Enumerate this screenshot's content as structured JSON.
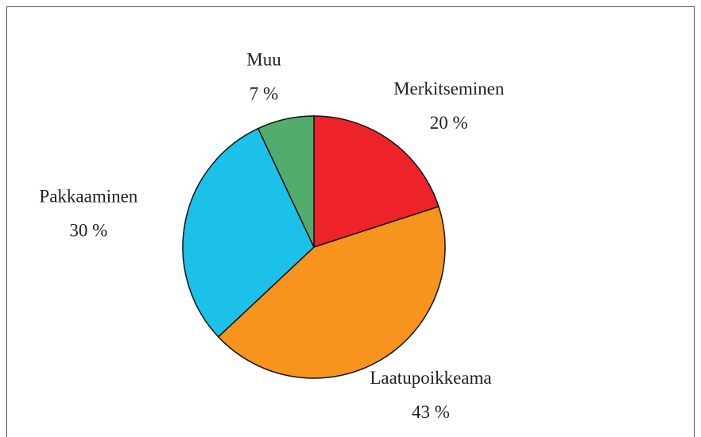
{
  "chart_data": {
    "type": "pie",
    "categories": [
      "Merkitseminen",
      "Laatupoikkeama",
      "Pakkaaminen",
      "Muu"
    ],
    "values": [
      20,
      43,
      30,
      7
    ],
    "value_labels": [
      "20 %",
      "43 %",
      "30 %",
      "7 %"
    ],
    "colors": [
      "#ee2229",
      "#f7941d",
      "#1bc1e8",
      "#52ad6d"
    ]
  }
}
